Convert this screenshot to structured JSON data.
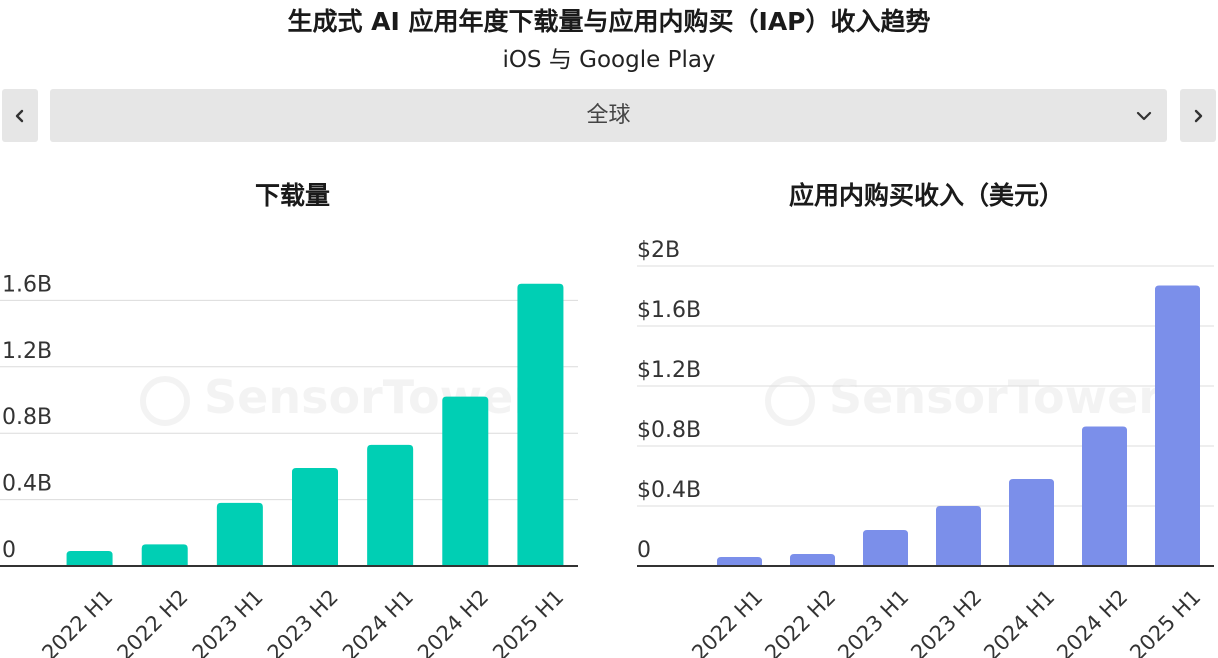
{
  "header": {
    "title": "生成式 AI 应用年度下载量与应用内购买（IAP）收入趋势",
    "subtitle": "iOS 与 Google Play"
  },
  "region_selector": {
    "selected": "全球",
    "prev_icon": "chevron-left-icon",
    "next_icon": "chevron-right-icon",
    "dropdown_icon": "chevron-down-icon"
  },
  "watermark": {
    "text": "SensorTower"
  },
  "chart_data": [
    {
      "type": "bar",
      "title": "下载量",
      "categories": [
        "2022 H1",
        "2022 H2",
        "2023 H1",
        "2023 H2",
        "2024 H1",
        "2024 H2",
        "2025 H1"
      ],
      "values": [
        0.09,
        0.13,
        0.38,
        0.59,
        0.73,
        1.02,
        1.7
      ],
      "unit": "B",
      "ylim": [
        0,
        1.6
      ],
      "yticks": [
        {
          "value": 0,
          "label": "0"
        },
        {
          "value": 0.4,
          "label": "0.4B"
        },
        {
          "value": 0.8,
          "label": "0.8B"
        },
        {
          "value": 1.2,
          "label": "1.2B"
        },
        {
          "value": 1.6,
          "label": "1.6B"
        }
      ],
      "grid": true,
      "color": "#00cfb4"
    },
    {
      "type": "bar",
      "title": "应用内购买收入（美元）",
      "categories": [
        "2022 H1",
        "2022 H2",
        "2023 H1",
        "2023 H2",
        "2024 H1",
        "2024 H2",
        "2025 H1"
      ],
      "values": [
        0.06,
        0.08,
        0.24,
        0.4,
        0.58,
        0.93,
        1.87
      ],
      "unit": "$B",
      "ylim": [
        0,
        2
      ],
      "yticks": [
        {
          "value": 0,
          "label": "0"
        },
        {
          "value": 0.4,
          "label": "$0.4B"
        },
        {
          "value": 0.8,
          "label": "$0.8B"
        },
        {
          "value": 1.2,
          "label": "$1.2B"
        },
        {
          "value": 1.6,
          "label": "$1.6B"
        },
        {
          "value": 2,
          "label": "$2B"
        }
      ],
      "grid": true,
      "color": "#7b8fea"
    }
  ]
}
